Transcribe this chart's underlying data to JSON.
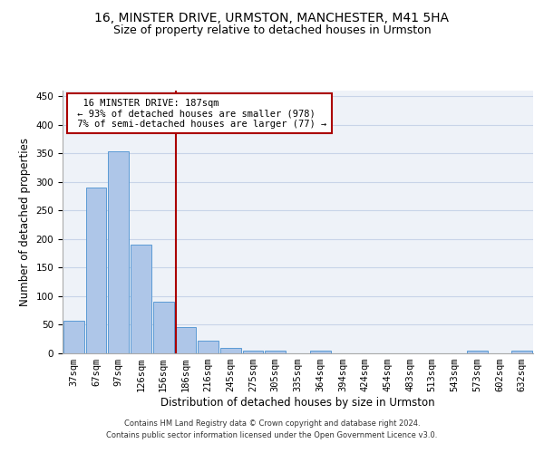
{
  "title_line1": "16, MINSTER DRIVE, URMSTON, MANCHESTER, M41 5HA",
  "title_line2": "Size of property relative to detached houses in Urmston",
  "xlabel": "Distribution of detached houses by size in Urmston",
  "ylabel": "Number of detached properties",
  "footer_line1": "Contains HM Land Registry data © Crown copyright and database right 2024.",
  "footer_line2": "Contains public sector information licensed under the Open Government Licence v3.0.",
  "bar_labels": [
    "37sqm",
    "67sqm",
    "97sqm",
    "126sqm",
    "156sqm",
    "186sqm",
    "216sqm",
    "245sqm",
    "275sqm",
    "305sqm",
    "335sqm",
    "364sqm",
    "394sqm",
    "424sqm",
    "454sqm",
    "483sqm",
    "513sqm",
    "543sqm",
    "573sqm",
    "602sqm",
    "632sqm"
  ],
  "bar_values": [
    57,
    290,
    353,
    191,
    90,
    46,
    22,
    10,
    5,
    5,
    0,
    5,
    0,
    0,
    0,
    0,
    0,
    0,
    5,
    0,
    5
  ],
  "bar_color": "#aec6e8",
  "bar_edge_color": "#5b9bd5",
  "property_label": "16 MINSTER DRIVE: 187sqm",
  "annotation_line1": "← 93% of detached houses are smaller (978)",
  "annotation_line2": "7% of semi-detached houses are larger (77) →",
  "vline_color": "#aa0000",
  "annotation_box_color": "#aa0000",
  "ylim": [
    0,
    460
  ],
  "yticks": [
    0,
    50,
    100,
    150,
    200,
    250,
    300,
    350,
    400,
    450
  ],
  "grid_color": "#c8d4e8",
  "bg_color": "#eef2f8",
  "title1_fontsize": 10,
  "title2_fontsize": 9,
  "tick_fontsize": 7.5,
  "ylabel_fontsize": 8.5,
  "xlabel_fontsize": 8.5
}
